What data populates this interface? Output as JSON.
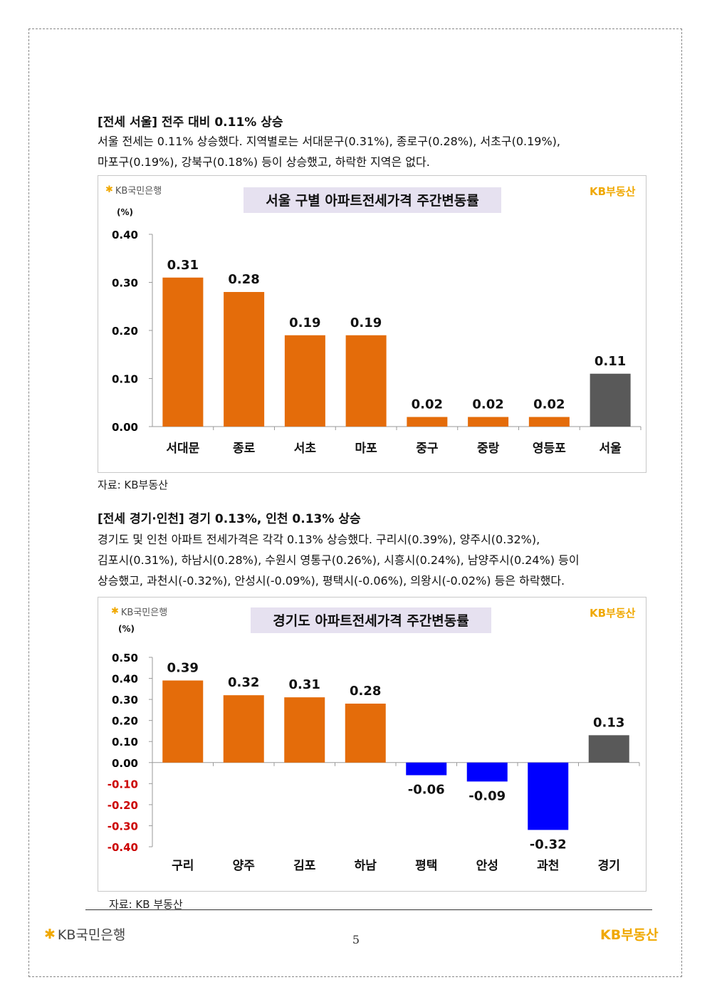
{
  "page": {
    "number": "5",
    "footer_left_logo": "KB국민은행",
    "footer_right_logo": "KB부동산"
  },
  "section1": {
    "title": "[전세 서울] 전주 대비 0.11% 상승",
    "paragraph_lines": [
      "서울 전세는 0.11% 상승했다. 지역별로는 서대문구(0.31%), 종로구(0.28%), 서초구(0.19%),",
      "마포구(0.19%), 강북구(0.18%) 등이 상승했고, 하락한 지역은 없다."
    ],
    "source": "자료: KB부동산"
  },
  "section2": {
    "title": "[전세 경기·인천] 경기 0.13%, 인천 0.13% 상승",
    "paragraph_lines": [
      "경기도 및 인천 아파트 전세가격은 각각 0.13% 상승했다. 구리시(0.39%), 양주시(0.32%),",
      "김포시(0.31%), 하남시(0.28%), 수원시 영통구(0.26%), 시흥시(0.24%), 남양주시(0.24%) 등이",
      "상승했고, 과천시(-0.32%), 안성시(-0.09%), 평택시(-0.06%), 의왕시(-0.02%) 등은 하락했다."
    ],
    "source": "자료: KB 부동산"
  },
  "chart_data": [
    {
      "type": "bar",
      "title": "서울 구별 아파트전세가격 주간변동률",
      "ylabel": "(%)",
      "logo_left": "KB국민은행",
      "logo_right": "KB부동산",
      "categories": [
        "서대문",
        "종로",
        "서초",
        "마포",
        "중구",
        "중랑",
        "영등포",
        "서울"
      ],
      "values": [
        0.31,
        0.28,
        0.19,
        0.19,
        0.02,
        0.02,
        0.02,
        0.11
      ],
      "value_labels": [
        "0.31",
        "0.28",
        "0.19",
        "0.19",
        "0.02",
        "0.02",
        "0.02",
        "0.11"
      ],
      "bar_colors": [
        "#e46c0a",
        "#e46c0a",
        "#e46c0a",
        "#e46c0a",
        "#e46c0a",
        "#e46c0a",
        "#e46c0a",
        "#595959"
      ],
      "ylim": [
        0,
        0.4
      ],
      "yticks": [
        0.4,
        0.3,
        0.2,
        0.1,
        0.0
      ],
      "ytick_labels": [
        "0.40",
        "0.30",
        "0.20",
        "0.10",
        "0.00"
      ],
      "ytick_colors": [
        "#000000",
        "#000000",
        "#000000",
        "#000000",
        "#000000"
      ]
    },
    {
      "type": "bar",
      "title": "경기도 아파트전세가격 주간변동률",
      "ylabel": "(%)",
      "logo_left": "KB국민은행",
      "logo_right": "KB부동산",
      "categories": [
        "구리",
        "양주",
        "김포",
        "하남",
        "평택",
        "안성",
        "과천",
        "경기"
      ],
      "values": [
        0.39,
        0.32,
        0.31,
        0.28,
        -0.06,
        -0.09,
        -0.32,
        0.13
      ],
      "value_labels": [
        "0.39",
        "0.32",
        "0.31",
        "0.28",
        "-0.06",
        "-0.09",
        "-0.32",
        "0.13"
      ],
      "bar_colors": [
        "#e46c0a",
        "#e46c0a",
        "#e46c0a",
        "#e46c0a",
        "#0000ff",
        "#0000ff",
        "#0000ff",
        "#595959"
      ],
      "ylim": [
        -0.4,
        0.5
      ],
      "yticks": [
        0.5,
        0.4,
        0.3,
        0.2,
        0.1,
        0.0,
        -0.1,
        -0.2,
        -0.3,
        -0.4
      ],
      "ytick_labels": [
        "0.50",
        "0.40",
        "0.30",
        "0.20",
        "0.10",
        "0.00",
        "-0.10",
        "-0.20",
        "-0.30",
        "-0.40"
      ],
      "ytick_colors": [
        "#000000",
        "#000000",
        "#000000",
        "#000000",
        "#000000",
        "#000000",
        "#cc0000",
        "#cc0000",
        "#cc0000",
        "#cc0000"
      ]
    }
  ]
}
